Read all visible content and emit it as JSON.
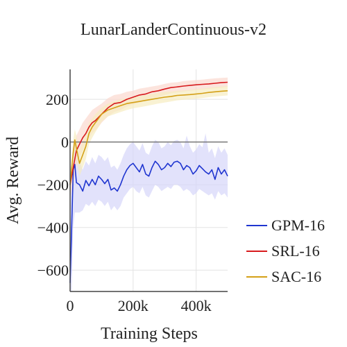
{
  "chart_data": {
    "type": "line",
    "title": "LunarLanderContinuous-v2",
    "xlabel": "Training Steps",
    "ylabel": "Avg. Reward",
    "xlim": [
      0,
      500000
    ],
    "ylim": [
      -700,
      340
    ],
    "xticks": [
      0,
      200000,
      400000
    ],
    "xtick_labels": [
      "0",
      "200k",
      "400k"
    ],
    "yticks": [
      -600,
      -400,
      -200,
      0,
      200
    ],
    "ytick_labels": [
      "−600",
      "−400",
      "−200",
      "0",
      "200"
    ],
    "grid": true,
    "legend_position": "right",
    "series": [
      {
        "name": "GPM-16",
        "color": "#1f35d0",
        "band_color": "#d6d6fa",
        "x": [
          0,
          5000,
          10000,
          15000,
          20000,
          30000,
          40000,
          50000,
          60000,
          70000,
          80000,
          90000,
          100000,
          110000,
          120000,
          130000,
          140000,
          150000,
          160000,
          170000,
          180000,
          190000,
          200000,
          210000,
          220000,
          230000,
          240000,
          250000,
          260000,
          270000,
          280000,
          290000,
          300000,
          310000,
          320000,
          330000,
          340000,
          350000,
          360000,
          370000,
          380000,
          390000,
          400000,
          410000,
          420000,
          430000,
          440000,
          450000,
          460000,
          470000,
          480000,
          490000,
          500000
        ],
        "values": [
          -660,
          -400,
          -130,
          -105,
          -190,
          -200,
          -230,
          -180,
          -205,
          -175,
          -200,
          -160,
          -175,
          -195,
          -175,
          -225,
          -215,
          -230,
          -200,
          -160,
          -130,
          -110,
          -100,
          -120,
          -140,
          -105,
          -150,
          -160,
          -120,
          -90,
          -105,
          -130,
          -120,
          -100,
          -115,
          -95,
          -90,
          -100,
          -130,
          -110,
          -120,
          -150,
          -135,
          -110,
          -125,
          -140,
          -150,
          -130,
          -175,
          -120,
          -150,
          -130,
          -160
        ],
        "lower": [
          -700,
          -700,
          -400,
          -330,
          -330,
          -330,
          -320,
          -290,
          -300,
          -280,
          -300,
          -270,
          -280,
          -300,
          -280,
          -320,
          -300,
          -320,
          -300,
          -260,
          -240,
          -220,
          -210,
          -230,
          -240,
          -210,
          -250,
          -260,
          -230,
          -200,
          -210,
          -230,
          -220,
          -210,
          -220,
          -200,
          -200,
          -210,
          -230,
          -220,
          -230,
          -250,
          -240,
          -220,
          -230,
          -240,
          -250,
          -240,
          -270,
          -230,
          -250,
          -240,
          -260
        ],
        "upper": [
          -350,
          -150,
          -20,
          0,
          -60,
          -90,
          -130,
          -90,
          -110,
          -70,
          -100,
          -60,
          -70,
          -90,
          -70,
          -120,
          -110,
          -130,
          -100,
          -60,
          -30,
          -10,
          0,
          -20,
          -40,
          -5,
          -50,
          -60,
          -20,
          10,
          0,
          -30,
          -20,
          0,
          -15,
          5,
          10,
          0,
          -30,
          30,
          -20,
          -50,
          -35,
          -10,
          -25,
          40,
          -50,
          -30,
          -75,
          -20,
          -50,
          -30,
          -60
        ]
      },
      {
        "name": "SRL-16",
        "color": "#d7191c",
        "band_color": "#fbd9cf",
        "x": [
          0,
          10000,
          20000,
          30000,
          40000,
          50000,
          60000,
          70000,
          80000,
          90000,
          100000,
          120000,
          140000,
          160000,
          180000,
          200000,
          220000,
          240000,
          260000,
          280000,
          300000,
          320000,
          340000,
          360000,
          380000,
          400000,
          420000,
          440000,
          460000,
          480000,
          500000
        ],
        "values": [
          -200,
          -120,
          -40,
          -10,
          20,
          40,
          70,
          90,
          100,
          115,
          130,
          160,
          180,
          185,
          200,
          210,
          220,
          225,
          235,
          240,
          248,
          255,
          258,
          262,
          265,
          268,
          270,
          272,
          275,
          278,
          280
        ],
        "lower": [
          -260,
          -200,
          -110,
          -70,
          -40,
          -10,
          20,
          40,
          55,
          70,
          90,
          120,
          140,
          150,
          165,
          175,
          185,
          195,
          205,
          210,
          220,
          228,
          232,
          236,
          240,
          243,
          246,
          249,
          252,
          255,
          258
        ],
        "upper": [
          -140,
          -40,
          30,
          60,
          90,
          110,
          130,
          150,
          160,
          170,
          180,
          205,
          220,
          225,
          235,
          240,
          250,
          255,
          260,
          265,
          272,
          278,
          280,
          285,
          288,
          290,
          292,
          295,
          298,
          300,
          302
        ]
      },
      {
        "name": "SAC-16",
        "color": "#d4a017",
        "band_color": "#f6ecc0",
        "x": [
          0,
          10000,
          15000,
          20000,
          30000,
          40000,
          50000,
          60000,
          70000,
          80000,
          90000,
          100000,
          120000,
          140000,
          160000,
          180000,
          200000,
          220000,
          240000,
          260000,
          280000,
          300000,
          320000,
          340000,
          360000,
          380000,
          400000,
          420000,
          440000,
          460000,
          480000,
          500000
        ],
        "values": [
          -200,
          -50,
          10,
          -30,
          -100,
          -60,
          -20,
          40,
          70,
          90,
          110,
          130,
          150,
          160,
          170,
          180,
          185,
          190,
          195,
          200,
          205,
          210,
          213,
          218,
          220,
          222,
          225,
          228,
          232,
          235,
          238,
          240
        ],
        "lower": [
          -240,
          -110,
          -40,
          -90,
          -160,
          -120,
          -80,
          -10,
          20,
          45,
          70,
          95,
          120,
          130,
          140,
          150,
          158,
          163,
          168,
          174,
          180,
          185,
          190,
          195,
          198,
          200,
          203,
          206,
          210,
          213,
          216,
          218
        ],
        "upper": [
          -160,
          10,
          60,
          30,
          -40,
          0,
          40,
          90,
          110,
          130,
          145,
          160,
          180,
          190,
          200,
          205,
          210,
          215,
          220,
          225,
          230,
          235,
          236,
          240,
          242,
          244,
          247,
          250,
          254,
          257,
          260,
          262
        ]
      }
    ]
  }
}
